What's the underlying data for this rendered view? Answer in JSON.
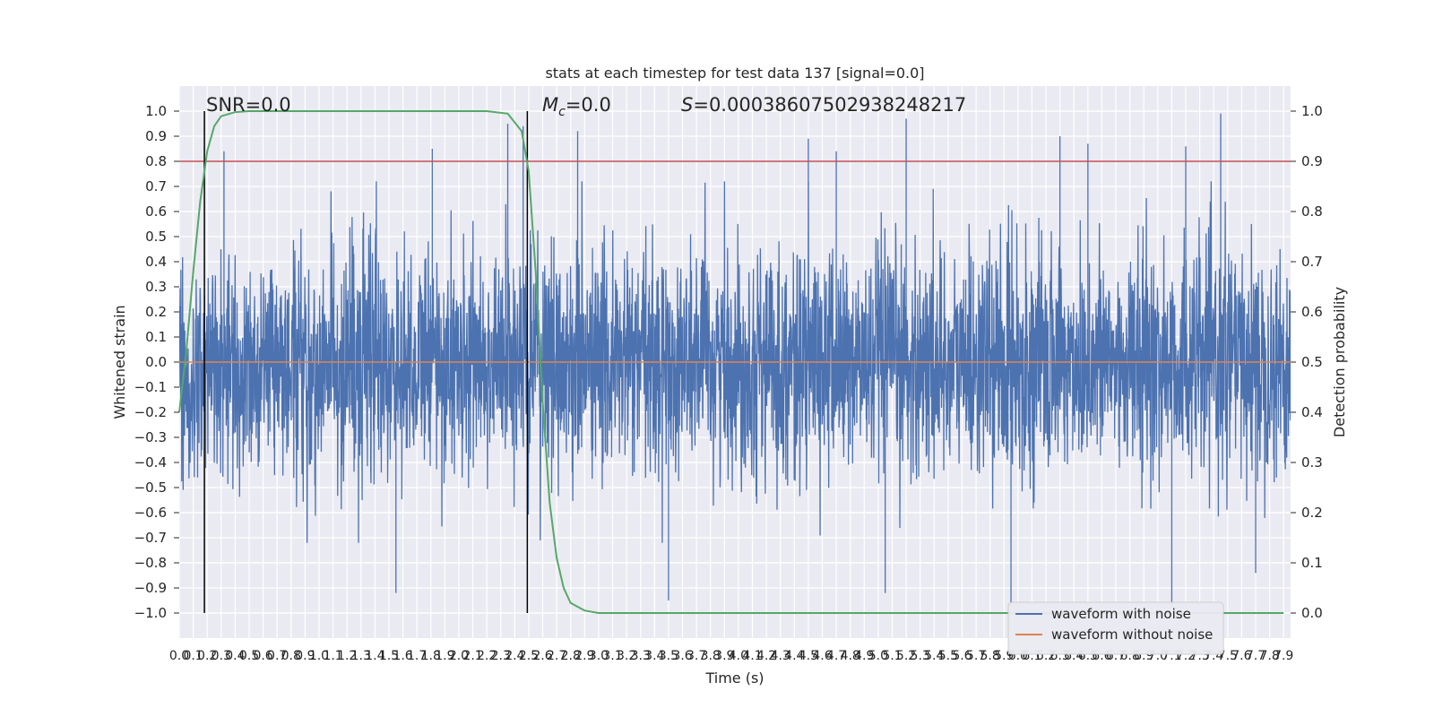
{
  "chart_data": {
    "type": "line",
    "title": "stats at each timestep for test data 137 [signal=0.0]",
    "xlabel": "Time (s)",
    "ylabel": "Whitened strain",
    "ylabel_right": "Detection probability",
    "xlim": [
      0.0,
      7.95
    ],
    "ylim": [
      -1.1,
      1.1
    ],
    "ylim_right": [
      -0.05,
      1.05
    ],
    "x_ticks": [
      "0.0",
      "0.1",
      "0.2",
      "0.3",
      "0.4",
      "0.5",
      "0.6",
      "0.7",
      "0.8",
      "0.9",
      "1.0",
      "1.1",
      "1.2",
      "1.3",
      "1.4",
      "1.5",
      "1.6",
      "1.7",
      "1.8",
      "1.9",
      "2.0",
      "2.1",
      "2.2",
      "2.3",
      "2.4",
      "2.5",
      "2.6",
      "2.7",
      "2.8",
      "2.9",
      "3.0",
      "3.1",
      "3.2",
      "3.3",
      "3.4",
      "3.5",
      "3.6",
      "3.7",
      "3.8",
      "3.9",
      "4.0",
      "4.1",
      "4.2",
      "4.3",
      "4.4",
      "4.5",
      "4.6",
      "4.7",
      "4.8",
      "4.9",
      "5.0",
      "5.1",
      "5.2",
      "5.3",
      "5.4",
      "5.5",
      "5.6",
      "5.7",
      "5.8",
      "5.9",
      "6.0",
      "6.1",
      "6.2",
      "6.3",
      "6.4",
      "6.5",
      "6.6",
      "6.7",
      "6.8",
      "6.9",
      "7.0",
      "7.1",
      "7.2",
      "7.3",
      "7.4",
      "7.5",
      "7.6",
      "7.7",
      "7.8",
      "7.9"
    ],
    "y_ticks": [
      "1.0",
      "0.9",
      "0.8",
      "0.7",
      "0.6",
      "0.5",
      "0.4",
      "0.3",
      "0.2",
      "0.1",
      "0.0",
      "−0.1",
      "−0.2",
      "−0.3",
      "−0.4",
      "−0.5",
      "−0.6",
      "−0.7",
      "−0.8",
      "−0.9",
      "−1.0"
    ],
    "y_ticks_right": [
      "1.0",
      "0.9",
      "0.8",
      "0.7",
      "0.6",
      "0.5",
      "0.4",
      "0.3",
      "0.2",
      "0.1",
      "0.0"
    ],
    "grid": true,
    "series": [
      {
        "name": "waveform with noise",
        "color": "#4c72b0",
        "description_values": {
          "typical_envelope": [
            -0.4,
            0.4
          ],
          "peaks": [
            {
              "x": 0.32,
              "y": 0.84
            },
            {
              "x": 1.81,
              "y": 0.85
            },
            {
              "x": 2.35,
              "y": 0.95
            },
            {
              "x": 2.46,
              "y": 0.94
            },
            {
              "x": 2.85,
              "y": 0.92
            },
            {
              "x": 4.5,
              "y": 0.89
            },
            {
              "x": 4.7,
              "y": 0.84
            },
            {
              "x": 5.2,
              "y": 0.97
            },
            {
              "x": 6.3,
              "y": 0.9
            },
            {
              "x": 6.5,
              "y": 0.87
            },
            {
              "x": 7.2,
              "y": 0.86
            },
            {
              "x": 7.45,
              "y": 0.99
            }
          ],
          "troughs": [
            {
              "x": 1.55,
              "y": -0.92
            },
            {
              "x": 3.5,
              "y": -0.95
            },
            {
              "x": 5.05,
              "y": -0.92
            },
            {
              "x": 5.95,
              "y": -0.97
            },
            {
              "x": 7.1,
              "y": -0.98
            },
            {
              "x": 7.7,
              "y": -0.84
            }
          ]
        }
      },
      {
        "name": "waveform without noise",
        "color": "#dd8452",
        "values": [
          {
            "x": 0.0,
            "y": 0.0
          },
          {
            "x": 7.95,
            "y": 0.0
          }
        ]
      },
      {
        "name": "",
        "axis": "right",
        "color": "#55a868",
        "values": [
          {
            "x": 0.0,
            "y": 0.4
          },
          {
            "x": 0.05,
            "y": 0.52
          },
          {
            "x": 0.1,
            "y": 0.68
          },
          {
            "x": 0.15,
            "y": 0.82
          },
          {
            "x": 0.2,
            "y": 0.92
          },
          {
            "x": 0.25,
            "y": 0.97
          },
          {
            "x": 0.3,
            "y": 0.99
          },
          {
            "x": 0.4,
            "y": 0.998
          },
          {
            "x": 0.5,
            "y": 1.0
          },
          {
            "x": 2.2,
            "y": 1.0
          },
          {
            "x": 2.35,
            "y": 0.995
          },
          {
            "x": 2.45,
            "y": 0.96
          },
          {
            "x": 2.5,
            "y": 0.88
          },
          {
            "x": 2.55,
            "y": 0.68
          },
          {
            "x": 2.6,
            "y": 0.42
          },
          {
            "x": 2.65,
            "y": 0.22
          },
          {
            "x": 2.7,
            "y": 0.11
          },
          {
            "x": 2.75,
            "y": 0.05
          },
          {
            "x": 2.8,
            "y": 0.02
          },
          {
            "x": 2.9,
            "y": 0.005
          },
          {
            "x": 3.0,
            "y": 0.0
          },
          {
            "x": 7.9,
            "y": 0.0
          }
        ]
      }
    ],
    "horizontal_lines": [
      {
        "y": 0.8,
        "color": "#c44e52"
      }
    ],
    "vertical_lines": [
      {
        "x": 0.18,
        "y0": -1.0,
        "y1": 1.0,
        "color": "#000000"
      },
      {
        "x": 2.49,
        "y0": -1.0,
        "y1": 1.0,
        "color": "#000000"
      }
    ],
    "annotations": {
      "snr": {
        "text": "SNR=0.0",
        "x": 0.2
      },
      "mc": {
        "text": "=0.0",
        "x": 2.6
      },
      "s": {
        "text": "=0.0003860750293824821 7",
        "x": 3.6
      }
    },
    "legend": {
      "placement": "lower right",
      "entries": [
        {
          "label": "waveform with noise",
          "color": "#4c72b0"
        },
        {
          "label": "waveform without noise",
          "color": "#dd8452"
        }
      ]
    }
  }
}
